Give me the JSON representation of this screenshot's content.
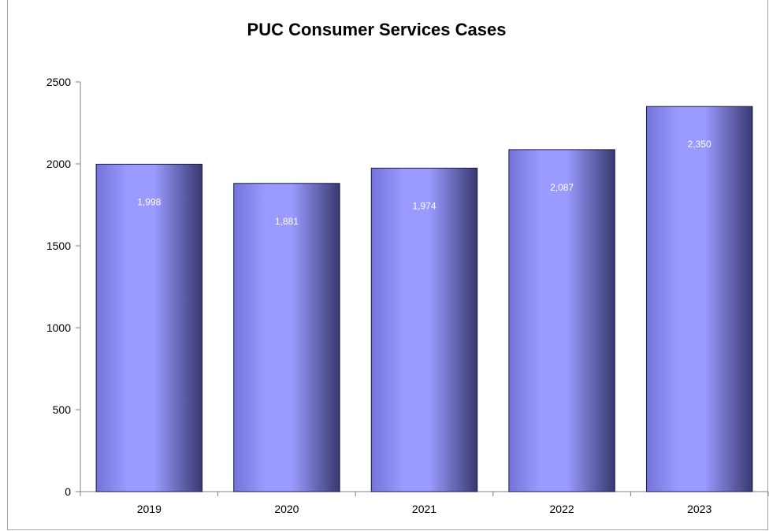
{
  "chart_data": {
    "type": "bar",
    "title": "PUC Consumer Services Cases",
    "xlabel": "",
    "ylabel": "",
    "categories": [
      "2019",
      "2020",
      "2021",
      "2022",
      "2023"
    ],
    "values": [
      1998,
      1881,
      1974,
      2087,
      2350
    ],
    "data_labels": [
      "1,998",
      "1,881",
      "1,974",
      "2,087",
      "2,350"
    ],
    "ylim": [
      0,
      2500
    ],
    "yticks": [
      0,
      500,
      1000,
      1500,
      2000,
      2500
    ],
    "ytick_labels": [
      "0",
      "500",
      "1000",
      "1500",
      "2000",
      "2500"
    ],
    "grid": false,
    "legend": "none",
    "colors": {
      "bar_light": "#9a9aff",
      "bar_mid": "#7373d9",
      "bar_dark": "#383870",
      "axis": "#808080"
    }
  }
}
